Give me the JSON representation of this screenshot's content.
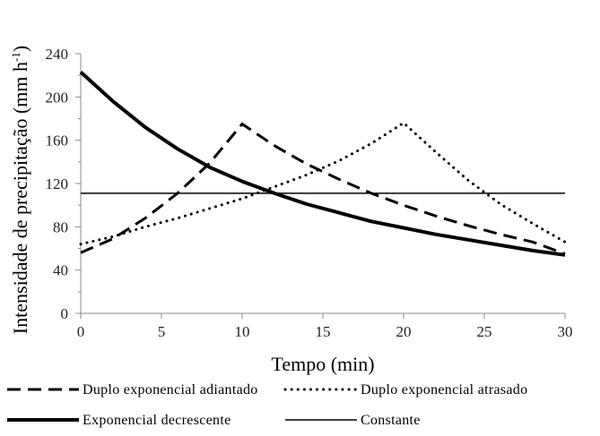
{
  "chart_data": {
    "type": "line",
    "xlabel": "Tempo (min)",
    "ylabel_main": "Intensidade de precipitação (mm h",
    "ylabel_sup": "-1",
    "ylabel_close": ")",
    "xlim": [
      0,
      30
    ],
    "ylim": [
      0,
      240
    ],
    "xticks": [
      0,
      5,
      10,
      15,
      20,
      25,
      30
    ],
    "yticks": [
      0,
      40,
      80,
      120,
      160,
      200,
      240
    ],
    "grid": false,
    "legend_position": "bottom",
    "series": [
      {
        "name": "Duplo exponencial adiantado",
        "style": "dashed",
        "x": [
          0,
          2,
          4,
          6,
          8,
          10,
          12,
          14,
          16,
          18,
          20,
          22,
          24,
          26,
          28,
          30
        ],
        "y": [
          56,
          69,
          88,
          111,
          139,
          175,
          155,
          138,
          124,
          111,
          100,
          90,
          81,
          73,
          66,
          55
        ]
      },
      {
        "name": "Duplo exponencial atrasado",
        "style": "dotted",
        "x": [
          0,
          2,
          4,
          6,
          8,
          10,
          12,
          14,
          16,
          18,
          20,
          22,
          24,
          26,
          28,
          30
        ],
        "y": [
          64,
          71,
          80,
          88,
          97,
          106,
          117,
          128,
          141,
          157,
          176,
          149,
          123,
          101,
          83,
          66
        ]
      },
      {
        "name": "Exponencial decrescente",
        "style": "thick",
        "x": [
          0,
          2,
          4,
          6,
          8,
          10,
          12,
          14,
          16,
          18,
          20,
          22,
          24,
          26,
          28,
          30
        ],
        "y": [
          223,
          196,
          172,
          152,
          135,
          122,
          111,
          101,
          93,
          85,
          79,
          73,
          68,
          63,
          58,
          54
        ]
      },
      {
        "name": "Constante",
        "style": "solid",
        "x": [
          0,
          30
        ],
        "y": [
          111,
          111
        ]
      }
    ]
  }
}
